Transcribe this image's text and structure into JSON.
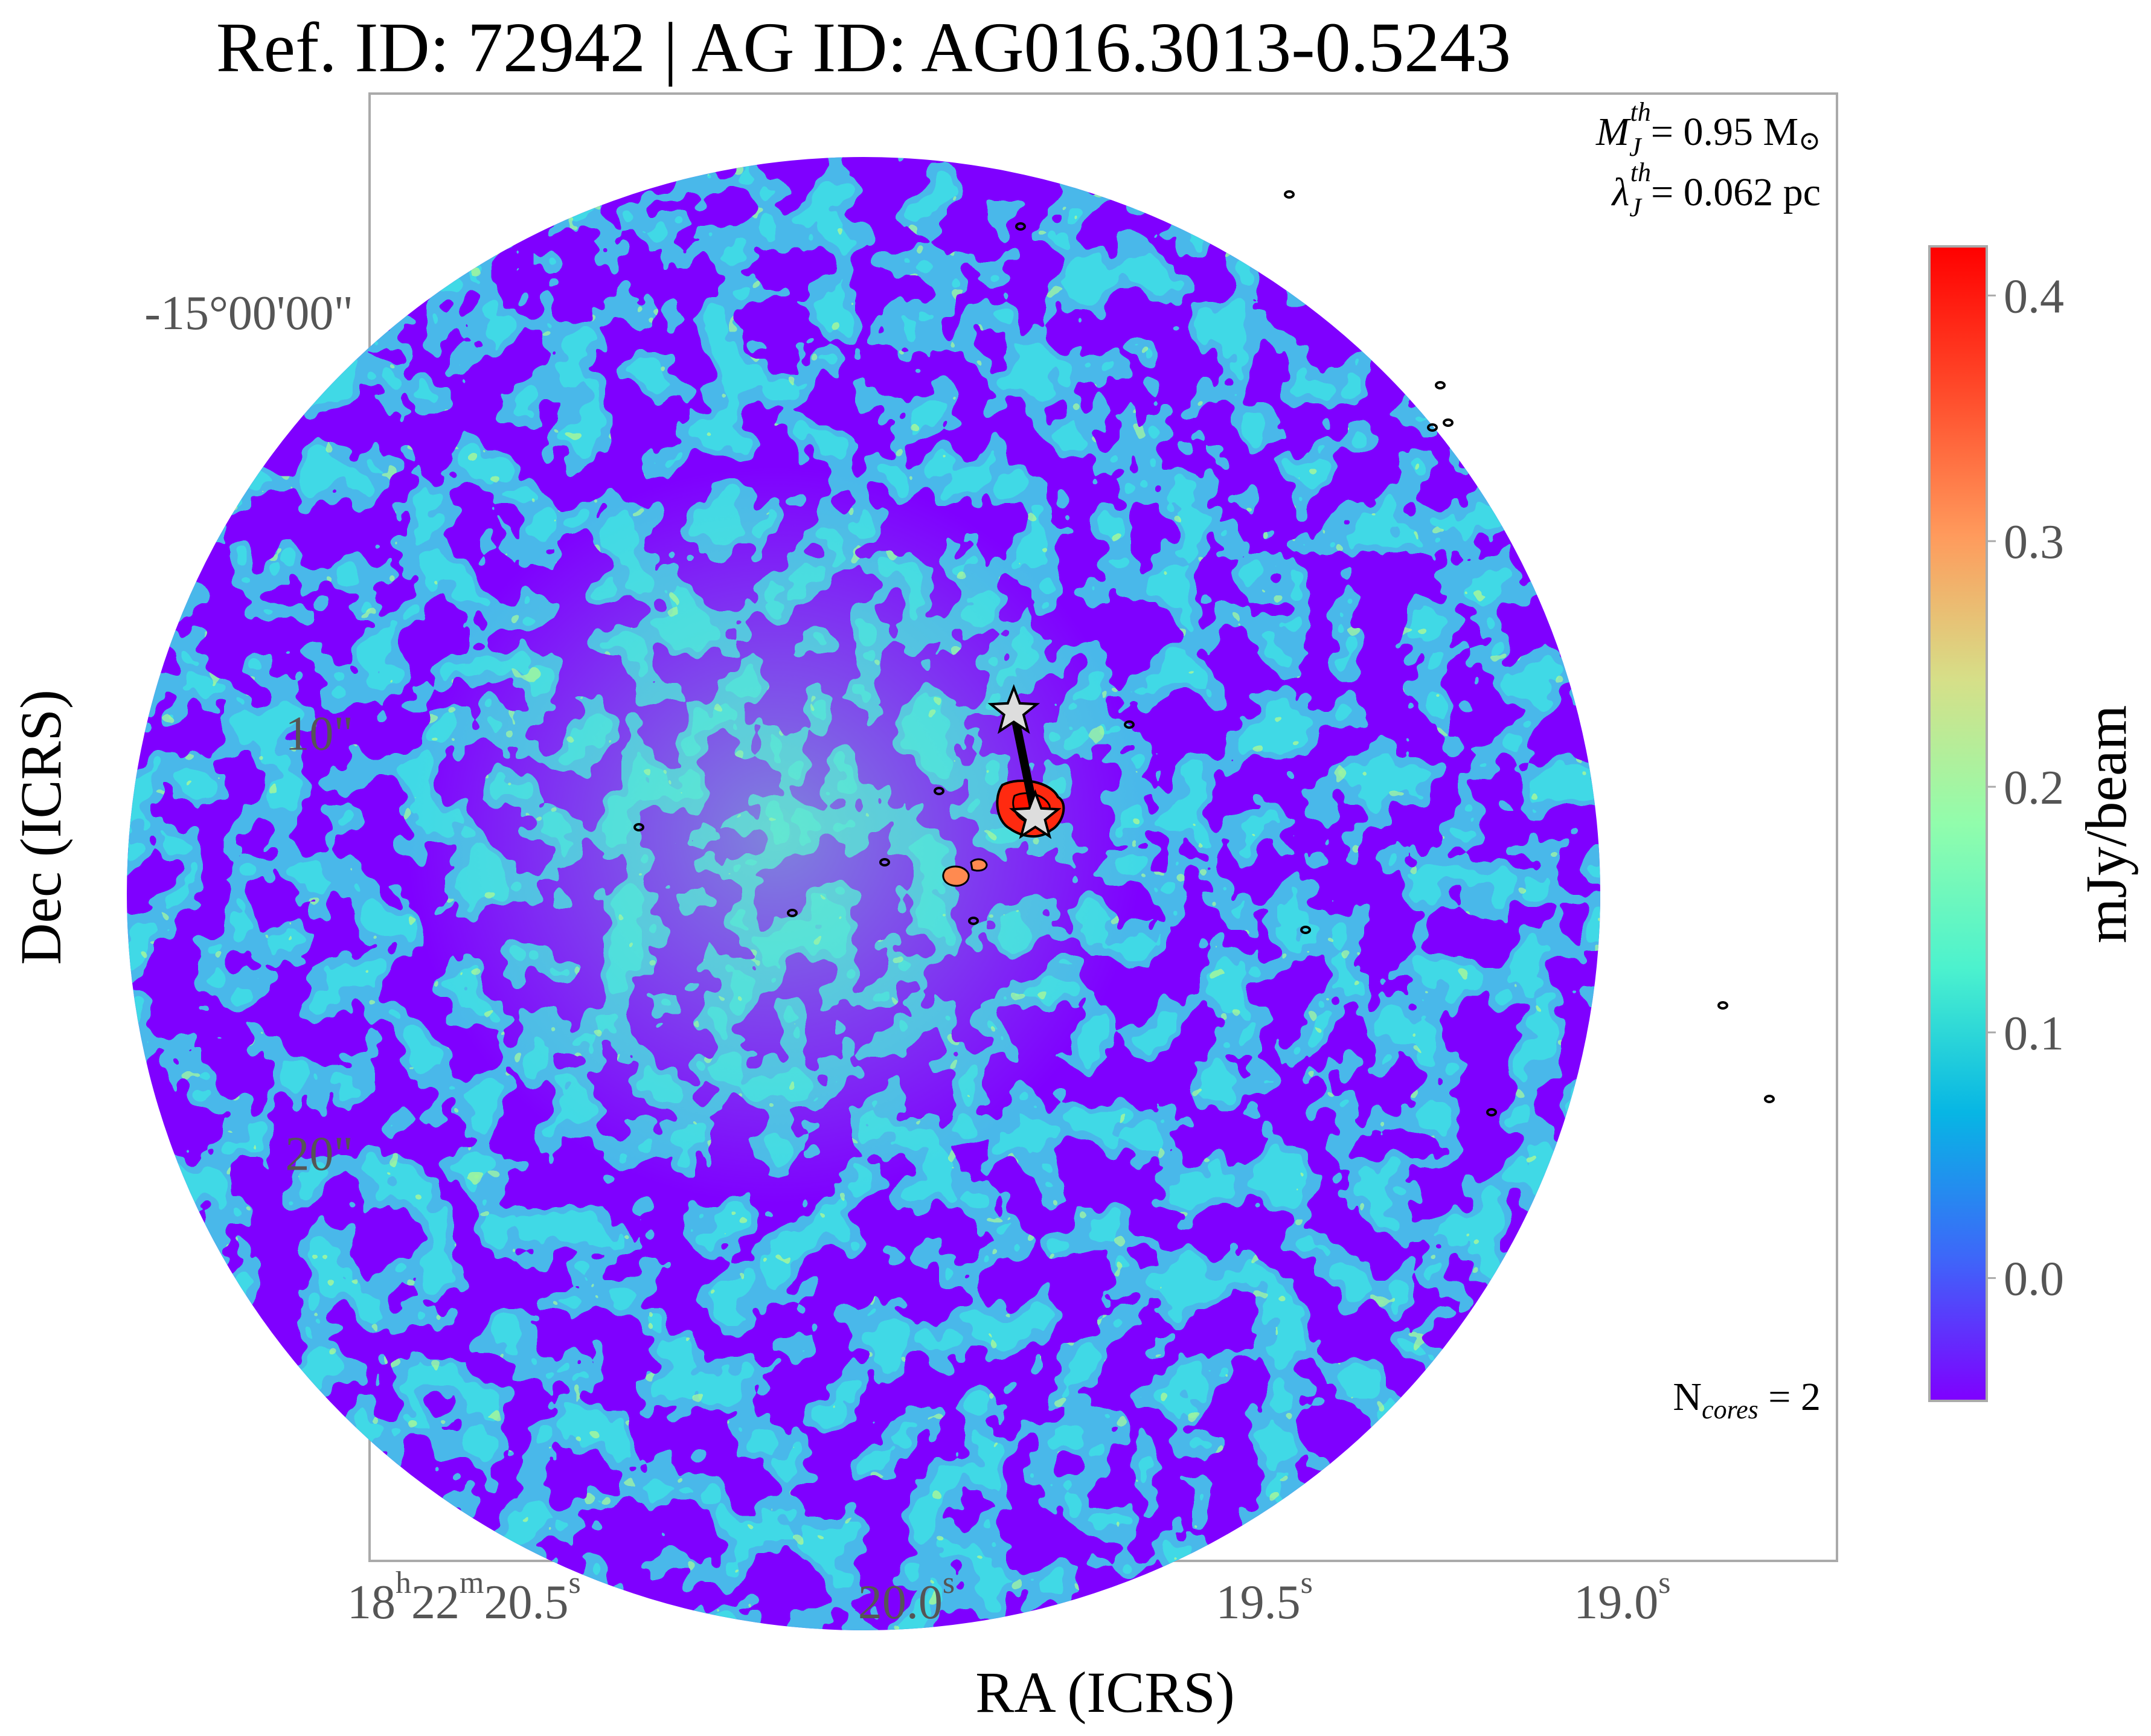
{
  "title": "Ref. ID: 72942 | AG ID: AG016.3013-0.5243",
  "chart_data": {
    "type": "heatmap",
    "title": "Ref. ID: 72942 | AG ID: AG016.3013-0.5243",
    "xlabel": "RA (ICRS)",
    "ylabel": "Dec (ICRS)",
    "x_ticks": [
      {
        "h": "18",
        "m": "22",
        "s": "20.5",
        "value_s": 20.5
      },
      {
        "s": "20.0",
        "value_s": 20.0
      },
      {
        "s": "19.5",
        "value_s": 19.5
      },
      {
        "s": "19.0",
        "value_s": 19.0
      }
    ],
    "y_ticks": [
      {
        "label": "-15°00'00\"",
        "offset_arcsec": 0
      },
      {
        "label": "10\"",
        "offset_arcsec": 10
      },
      {
        "label": "20\"",
        "offset_arcsec": 20
      }
    ],
    "x_range_s": [
      20.75,
      18.7
    ],
    "y_range_arcsec": [
      -5.2,
      29.7
    ],
    "colorbar": {
      "label": "mJy/beam",
      "ticks": [
        0.0,
        0.1,
        0.2,
        0.3,
        0.4
      ],
      "tick_labels": [
        "0.0",
        "0.1",
        "0.2",
        "0.3",
        "0.4"
      ],
      "range": [
        -0.05,
        0.42
      ],
      "colormap": "rainbow",
      "colors": [
        "#7f00ff",
        "#3d67f9",
        "#07b6e4",
        "#4cf2ce",
        "#91fdac",
        "#d6df88",
        "#ff9a5c",
        "#ff4a2a",
        "#ff0000"
      ]
    },
    "field_of_view": "circular",
    "cores": [
      {
        "ra_s": 19.85,
        "dec_offset_arcsec": 9.5
      },
      {
        "ra_s": 19.82,
        "dec_offset_arcsec": 12.0
      }
    ],
    "annotations": {
      "jeans_mass": {
        "symbol": "M",
        "sub": "J",
        "sup": "th",
        "text": "= 0.95 M",
        "unit_symbol": "⊙"
      },
      "jeans_length": {
        "symbol": "λ",
        "sub": "J",
        "sup": "th",
        "text": "= 0.062 pc"
      },
      "n_cores": {
        "prefix": "N",
        "sub": "cores",
        "text": " = 2"
      }
    },
    "grid": false
  },
  "colors": {
    "axes_frame": "#aaaaaa",
    "tick_text": "#555555",
    "star_fill": "#dddddd",
    "contour": "#000000"
  }
}
